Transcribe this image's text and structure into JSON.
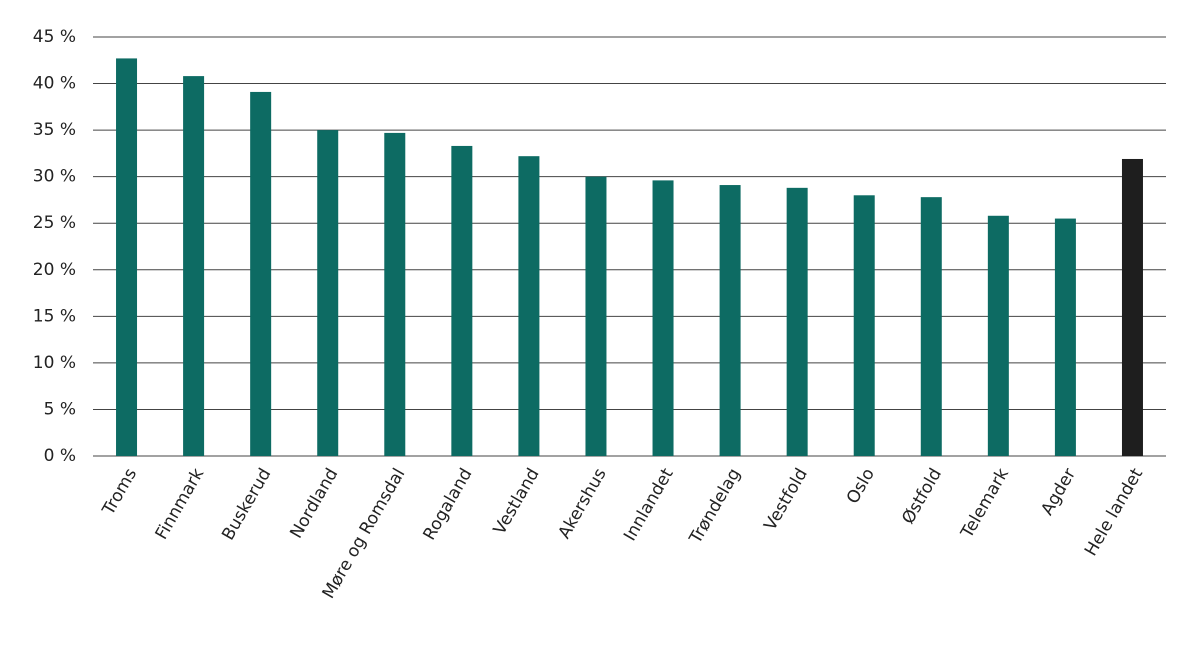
{
  "chart_data": {
    "type": "bar",
    "categories": [
      "Troms",
      "Finnmark",
      "Buskerud",
      "Nordland",
      "Møre og Romsdal",
      "Rogaland",
      "Vestland",
      "Akershus",
      "Innlandet",
      "Trøndelag",
      "Vestfold",
      "Oslo",
      "Østfold",
      "Telemark",
      "Agder",
      "Hele landet"
    ],
    "values": [
      42.7,
      40.8,
      39.1,
      35.0,
      34.7,
      33.3,
      32.2,
      30.0,
      29.6,
      29.1,
      28.8,
      28.0,
      27.8,
      25.8,
      25.5,
      31.9
    ],
    "colors": [
      "#0d6b63",
      "#0d6b63",
      "#0d6b63",
      "#0d6b63",
      "#0d6b63",
      "#0d6b63",
      "#0d6b63",
      "#0d6b63",
      "#0d6b63",
      "#0d6b63",
      "#0d6b63",
      "#0d6b63",
      "#0d6b63",
      "#0d6b63",
      "#0d6b63",
      "#1e1e1e"
    ],
    "ylim": [
      0,
      45
    ],
    "yticks": [
      {
        "value": 0,
        "label": "0 %"
      },
      {
        "value": 5,
        "label": "5 %"
      },
      {
        "value": 10,
        "label": "10 %"
      },
      {
        "value": 15,
        "label": "15 %"
      },
      {
        "value": 20,
        "label": "20 %"
      },
      {
        "value": 25,
        "label": "25 %"
      },
      {
        "value": 30,
        "label": "30 %"
      },
      {
        "value": 35,
        "label": "35 %"
      },
      {
        "value": 40,
        "label": "40 %"
      },
      {
        "value": 45,
        "label": "45 %"
      }
    ],
    "grid": true
  }
}
